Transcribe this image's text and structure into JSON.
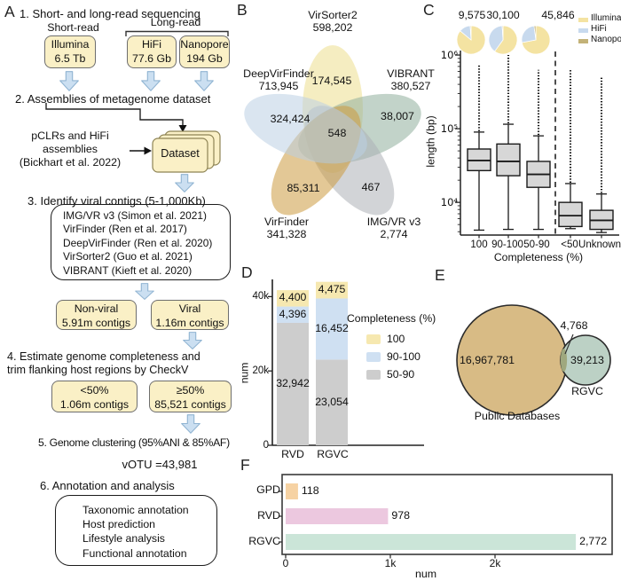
{
  "figure": {
    "panel_a": {
      "label": "A",
      "step1": "1. Short- and long-read sequencing",
      "short_read": "Short-read",
      "long_read": "Long-read",
      "seq_boxes": [
        {
          "name": "Illumina",
          "amount": "6.5 Tb"
        },
        {
          "name": "HiFi",
          "amount": "77.6 Gb"
        },
        {
          "name": "Nanopore",
          "amount": "194 Gb"
        }
      ],
      "step2": "2. Assemblies of metagenome dataset",
      "pclr_line1": "pCLRs and HiFi",
      "pclr_line2": "assemblies",
      "pclr_line3": "(Bickhart et al. 2022)",
      "dataset": "Dataset",
      "step3": "3. Identify viral contigs (5-1,000Kb)",
      "tools": [
        "IMG/VR v3 (Simon et al. 2021)",
        "VirFinder (Ren et al. 2017)",
        "DeepVirFinder (Ren et al. 2020)",
        "VirSorter2 (Guo et al. 2021)",
        "VIBRANT (Kieft  et al. 2020)"
      ],
      "nonviral_title": "Non-viral",
      "nonviral_sub": "5.91m contigs",
      "viral_title": "Viral",
      "viral_sub": "1.16m contigs",
      "step4_line1": "4. Estimate genome completeness and",
      "step4_line2": "trim flanking host regions by CheckV",
      "lt50_title": "<50%",
      "lt50_sub": "1.06m contigs",
      "ge50_title": "≥50%",
      "ge50_sub": "85,521 contigs",
      "step5": "5. Genome clustering (95%ANI & 85%AF)",
      "votu": "vOTU =43,981",
      "step6": "6. Annotation and analysis",
      "annotations": [
        "Taxonomic annotation",
        "Host prediction",
        "Lifestyle analysis",
        "Functional annotation"
      ]
    },
    "colors": {
      "flow_box_fill": "#FAF0C6",
      "arrow_fill": "#CBDFF1",
      "arrow_stroke": "#90B4D2",
      "boxplot_fill": "#D7D7D7"
    }
  },
  "chart_data": [
    {
      "panel": "B",
      "type": "venn5",
      "sets": [
        {
          "name": "VirSorter2",
          "size": "598,202",
          "unique": "174,545",
          "color": "#EDDE8E",
          "angle": 0
        },
        {
          "name": "VIBRANT",
          "size": "380,527",
          "unique": "38,007",
          "color": "#8FAE9C",
          "angle": 72
        },
        {
          "name": "IMG/VR v3",
          "size": "2,774",
          "unique": "467",
          "color": "#ADB1B6",
          "angle": 144
        },
        {
          "name": "VirFinder",
          "size": "341,328",
          "unique": "85,311",
          "color": "#CC9A3F",
          "angle": 216
        },
        {
          "name": "DeepVirFinder",
          "size": "713,945",
          "unique": "324,424",
          "color": "#BCCFE4",
          "angle": 288
        }
      ],
      "all_overlap": "548"
    },
    {
      "panel": "C",
      "type": "box",
      "pies": [
        {
          "label": "9,575",
          "fractions": [
            0.86,
            0.13,
            0.01
          ]
        },
        {
          "label": "30,100",
          "fractions": [
            0.6,
            0.39,
            0.01
          ]
        },
        {
          "label": "45,846",
          "fractions": [
            0.72,
            0.26,
            0.02
          ]
        }
      ],
      "legend": [
        {
          "label": "Illumina",
          "color": "#F4E3A2"
        },
        {
          "label": "HiFi",
          "color": "#C8DAEE"
        },
        {
          "label": "Nanopore",
          "color": "#C3B278"
        }
      ],
      "ylabel": "length (bp)",
      "xlabel": "Completeness (%)",
      "yscale": "log",
      "ylim": [
        3600,
        1150000
      ],
      "yticks": [
        "10⁴",
        "10⁵",
        "10⁶"
      ],
      "ytick_values": [
        10000,
        100000,
        1000000
      ],
      "categories": [
        "100",
        "90-100",
        "50-90",
        "<50",
        "Unknown"
      ],
      "boxes": [
        {
          "whisker_low": 4200,
          "q1": 27000,
          "median": 37000,
          "q3": 53000,
          "whisker_high": 90000,
          "outlier_max": 760000
        },
        {
          "whisker_low": 4300,
          "q1": 23000,
          "median": 36000,
          "q3": 62000,
          "whisker_high": 115000,
          "outlier_max": 1000000
        },
        {
          "whisker_low": 4300,
          "q1": 16000,
          "median": 24000,
          "q3": 36000,
          "whisker_high": 80000,
          "outlier_max": 630000
        },
        {
          "whisker_low": 4400,
          "q1": 4700,
          "median": 6600,
          "q3": 10000,
          "whisker_high": 18000,
          "outlier_max": 640000
        },
        {
          "whisker_low": 3900,
          "q1": 4300,
          "median": 5700,
          "q3": 7800,
          "whisker_high": 13000,
          "outlier_max": 500000
        }
      ],
      "divider_after_category": 2
    },
    {
      "panel": "D",
      "type": "stacked_bar",
      "ylabel": "num",
      "yticks": [
        {
          "label": "0",
          "value": 0
        },
        {
          "label": "20k",
          "value": 20000
        },
        {
          "label": "40k",
          "value": 40000
        }
      ],
      "legend_title": "Completeness (%)",
      "categories": [
        "RVD",
        "RGVC"
      ],
      "series": [
        {
          "name": "50-90",
          "color": "#CDCDCD",
          "values": [
            32942,
            23054
          ]
        },
        {
          "name": "90-100",
          "color": "#CFE0F2",
          "values": [
            4396,
            16452
          ]
        },
        {
          "name": "100",
          "color": "#F6E8B0",
          "values": [
            4400,
            4475
          ]
        }
      ]
    },
    {
      "panel": "E",
      "type": "venn2",
      "left": {
        "label": "Public Databases",
        "unique": "16,967,781",
        "color": "#D8BB85"
      },
      "right": {
        "label": "RGVC",
        "unique": "39,213",
        "color": "#BCD1C5"
      },
      "overlap": "4,768",
      "overlap_color": "#9FA87E"
    },
    {
      "panel": "F",
      "type": "bar_h",
      "categories": [
        "GPD",
        "RVD",
        "RGVC"
      ],
      "values": [
        118,
        978,
        2772
      ],
      "colors": [
        "#F6D2A3",
        "#ECC8DF",
        "#CBE5D8"
      ],
      "xlabel": "num",
      "xticks": [
        {
          "label": "0",
          "value": 0
        },
        {
          "label": "1k",
          "value": 1000
        },
        {
          "label": "2k",
          "value": 2000
        }
      ],
      "xlim": [
        0,
        3100
      ]
    }
  ]
}
